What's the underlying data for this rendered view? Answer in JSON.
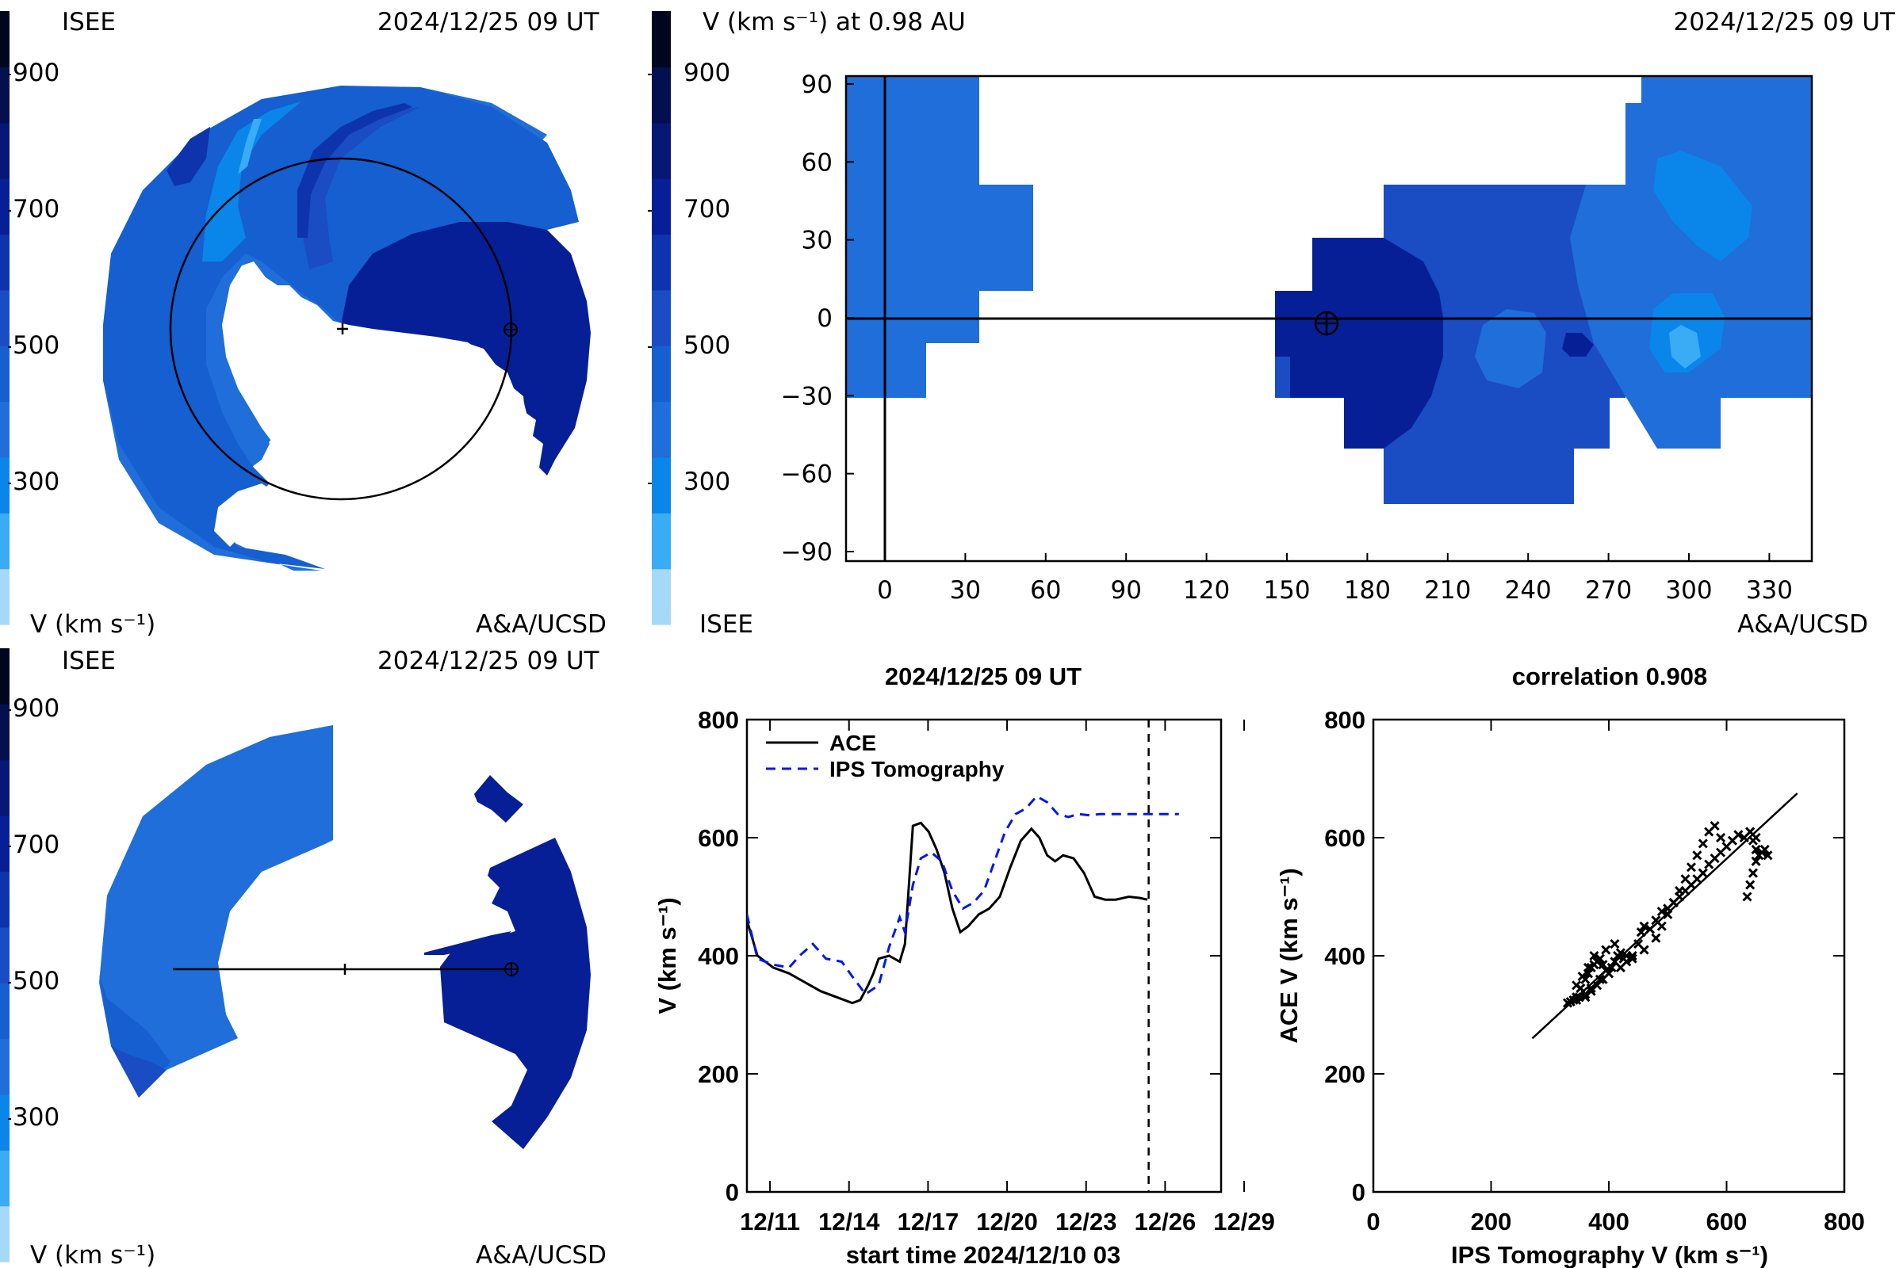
{
  "colorbar": {
    "ticks": [
      "900",
      "700",
      "500",
      "300"
    ],
    "colors": [
      "#a6d8f7",
      "#3aabf5",
      "#0a86ea",
      "#1f6ed9",
      "#155fd1",
      "#1a4cc4",
      "#0d34ad",
      "#071f96",
      "#061775",
      "#030f4f",
      "#01061f"
    ]
  },
  "panel_tl": {
    "label_left": "ISEE",
    "timestamp": "2024/12/25 09 UT",
    "unit_label": "V (km s⁻¹)",
    "credit": "A&A/UCSD"
  },
  "panel_tr": {
    "title": "V (km s⁻¹) at 0.98 AU",
    "timestamp": "2024/12/25 09 UT",
    "label_left": "ISEE",
    "credit": "A&A/UCSD",
    "x_ticks": [
      "0",
      "30",
      "60",
      "90",
      "120",
      "150",
      "180",
      "210",
      "240",
      "270",
      "300",
      "330"
    ],
    "y_ticks": [
      "90",
      "60",
      "30",
      "0",
      "−30",
      "−60",
      "−90"
    ]
  },
  "panel_bl": {
    "label_left": "ISEE",
    "timestamp": "2024/12/25 09 UT",
    "unit_label": "V (km s⁻¹)",
    "credit": "A&A/UCSD"
  },
  "chart_data": [
    {
      "type": "line",
      "title": "2024/12/25 09 UT",
      "xlabel": "start time 2024/12/10 03",
      "ylabel": "V (km s⁻¹)",
      "x_ticks": [
        "12/11",
        "12/14",
        "12/17",
        "12/20",
        "12/23",
        "12/26",
        "12/29"
      ],
      "y_ticks": [
        "0",
        "200",
        "400",
        "600",
        "800"
      ],
      "ylim": [
        0,
        800
      ],
      "legend_position": "top-left",
      "marker_label": "12/25 09 UT",
      "series": [
        {
          "name": "ACE",
          "style": "solid",
          "color": "#000000",
          "x": [
            0.0,
            0.4,
            1.0,
            1.6,
            2.2,
            2.8,
            3.4,
            4.0,
            4.3,
            4.6,
            4.8,
            5.0,
            5.4,
            5.8,
            6.0,
            6.3,
            6.6,
            6.9,
            7.2,
            7.5,
            7.8,
            8.1,
            8.4,
            8.8,
            9.2,
            9.6,
            10.0,
            10.4,
            10.8,
            11.1,
            11.4,
            11.7,
            12.0,
            12.4,
            12.8,
            13.2,
            13.6,
            14.0,
            14.5,
            14.9,
            15.2
          ],
          "y": [
            460,
            400,
            380,
            370,
            355,
            340,
            330,
            320,
            325,
            350,
            370,
            395,
            400,
            390,
            420,
            620,
            625,
            610,
            580,
            540,
            480,
            440,
            450,
            470,
            480,
            500,
            550,
            595,
            615,
            600,
            570,
            560,
            570,
            565,
            540,
            500,
            495,
            495,
            500,
            498,
            495
          ]
        },
        {
          "name": "IPS Tomography",
          "style": "dashed",
          "color": "#0018e8",
          "x": [
            0.0,
            0.4,
            1.0,
            1.6,
            2.0,
            2.5,
            3.0,
            3.6,
            4.0,
            4.5,
            5.0,
            5.4,
            5.8,
            6.0,
            6.3,
            6.6,
            7.0,
            7.4,
            7.8,
            8.2,
            8.6,
            9.0,
            9.4,
            9.8,
            10.2,
            10.6,
            11.0,
            11.4,
            11.8,
            12.2,
            12.6,
            13.0,
            13.4,
            13.8,
            14.4,
            14.9,
            15.4,
            16.0,
            16.4
          ],
          "y": [
            470,
            395,
            385,
            380,
            400,
            420,
            395,
            390,
            365,
            335,
            350,
            415,
            465,
            440,
            520,
            565,
            575,
            560,
            510,
            480,
            490,
            510,
            560,
            610,
            640,
            650,
            670,
            660,
            640,
            635,
            640,
            638,
            640,
            640,
            640,
            640,
            640,
            640,
            640
          ]
        }
      ]
    },
    {
      "type": "scatter",
      "title": "correlation 0.908",
      "xlabel": "IPS Tomography V (km s⁻¹)",
      "ylabel": "ACE V (km s⁻¹)",
      "x_ticks": [
        "0",
        "200",
        "400",
        "600",
        "800"
      ],
      "y_ticks": [
        "0",
        "200",
        "400",
        "600",
        "800"
      ],
      "xlim": [
        0,
        800
      ],
      "ylim": [
        0,
        800
      ],
      "fit_line": {
        "x": [
          270,
          720
        ],
        "y": [
          260,
          675
        ]
      },
      "points": {
        "x": [
          330,
          340,
          345,
          352,
          360,
          365,
          370,
          375,
          380,
          385,
          390,
          395,
          400,
          405,
          410,
          415,
          420,
          425,
          430,
          440,
          450,
          455,
          460,
          470,
          480,
          490,
          500,
          510,
          520,
          530,
          540,
          550,
          560,
          570,
          580,
          590,
          600,
          610,
          620,
          630,
          640,
          645,
          650,
          655,
          660,
          665,
          670,
          650,
          645,
          640,
          635,
          640,
          650,
          360,
          370,
          380,
          390,
          400,
          420,
          440,
          460,
          480,
          490,
          500,
          510,
          520,
          530,
          540,
          550,
          560,
          570,
          580,
          590,
          360,
          350,
          345,
          355,
          365,
          375,
          395,
          410,
          430,
          370,
          385,
          345,
          335
        ],
        "y": [
          320,
          325,
          330,
          345,
          360,
          370,
          380,
          385,
          390,
          395,
          385,
          375,
          370,
          380,
          390,
          400,
          405,
          395,
          390,
          400,
          420,
          440,
          450,
          445,
          460,
          475,
          480,
          490,
          500,
          510,
          520,
          530,
          540,
          555,
          565,
          575,
          585,
          595,
          605,
          600,
          610,
          595,
          580,
          570,
          575,
          580,
          570,
          560,
          540,
          520,
          500,
          610,
          600,
          330,
          340,
          350,
          360,
          370,
          380,
          395,
          410,
          430,
          450,
          470,
          490,
          510,
          530,
          550,
          570,
          590,
          610,
          620,
          600,
          335,
          330,
          350,
          365,
          380,
          400,
          410,
          420,
          400,
          345,
          360,
          325,
          322
        ]
      }
    }
  ]
}
